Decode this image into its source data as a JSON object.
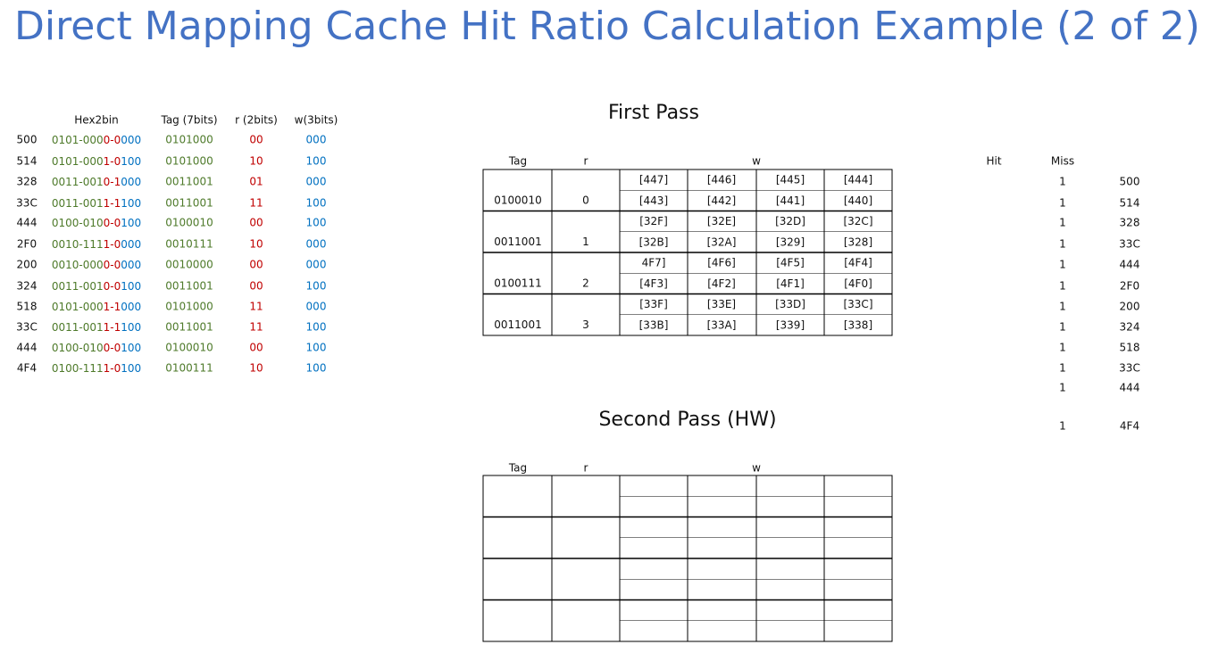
{
  "title": "Direct Mapping Cache Hit Ratio Calculation Example (2 of 2)",
  "address_table": {
    "headers": [
      "Hex2bin",
      "Tag (7bits)",
      "r (2bits)",
      "w(3bits)"
    ],
    "rows": [
      {
        "address": "500",
        "hex2bin": [
          "0101-000",
          "0-0",
          "000"
        ],
        "tag": "0101000",
        "r": "00",
        "w": "000"
      },
      {
        "address": "514",
        "hex2bin": [
          "0101-000",
          "1-0",
          "100"
        ],
        "tag": "0101000",
        "r": "10",
        "w": "100"
      },
      {
        "address": "328",
        "hex2bin": [
          "0011-001",
          "0-1",
          "000"
        ],
        "tag": "0011001",
        "r": "01",
        "w": "000"
      },
      {
        "address": "33C",
        "hex2bin": [
          "0011-001",
          "1-1",
          "100"
        ],
        "tag": "0011001",
        "r": "11",
        "w": "100"
      },
      {
        "address": "444",
        "hex2bin": [
          "0100-010",
          "0-0",
          "100"
        ],
        "tag": "0100010",
        "r": "00",
        "w": "100"
      },
      {
        "address": "2F0",
        "hex2bin": [
          "0010-111",
          "1-0",
          "000"
        ],
        "tag": "0010111",
        "r": "10",
        "w": "000"
      },
      {
        "address": "200",
        "hex2bin": [
          "0010-000",
          "0-0",
          "000"
        ],
        "tag": "0010000",
        "r": "00",
        "w": "000"
      },
      {
        "address": "324",
        "hex2bin": [
          "0011-001",
          "0-0",
          "100"
        ],
        "tag": "0011001",
        "r": "00",
        "w": "100"
      },
      {
        "address": "518",
        "hex2bin": [
          "0101-000",
          "1-1",
          "000"
        ],
        "tag": "0101000",
        "r": "11",
        "w": "000"
      },
      {
        "address": "33C",
        "hex2bin": [
          "0011-001",
          "1-1",
          "100"
        ],
        "tag": "0011001",
        "r": "11",
        "w": "100"
      },
      {
        "address": "444",
        "hex2bin": [
          "0100-010",
          "0-0",
          "100"
        ],
        "tag": "0100010",
        "r": "00",
        "w": "100"
      },
      {
        "address": "4F4",
        "hex2bin": [
          "0100-111",
          "1-0",
          "100"
        ],
        "tag": "0100111",
        "r": "10",
        "w": "100"
      }
    ]
  },
  "first_pass": {
    "title": "First Pass",
    "headers": [
      "Tag",
      "r",
      "w"
    ],
    "sets": [
      {
        "tag": "0100010",
        "r": "0",
        "w": [
          [
            "[447]",
            "[446]",
            "[445]",
            "[444]"
          ],
          [
            "[443]",
            "[442]",
            "[441]",
            "[440]"
          ]
        ]
      },
      {
        "tag": "0011001",
        "r": "1",
        "w": [
          [
            "[32F]",
            "[32E]",
            "[32D]",
            "[32C]"
          ],
          [
            "[32B]",
            "[32A]",
            "[329]",
            "[328]"
          ]
        ]
      },
      {
        "tag": "0100111",
        "r": "2",
        "w": [
          [
            "4F7]",
            "[4F6]",
            "[4F5]",
            "[4F4]"
          ],
          [
            "[4F3]",
            "[4F2]",
            "[4F1]",
            "[4F0]"
          ]
        ]
      },
      {
        "tag": "0011001",
        "r": "3",
        "w": [
          [
            "[33F]",
            "[33E]",
            "[33D]",
            "[33C]"
          ],
          [
            "[33B]",
            "[33A]",
            "[339]",
            "[338]"
          ]
        ]
      }
    ]
  },
  "tally": {
    "headers": [
      "Hit",
      "Miss"
    ],
    "rows": [
      {
        "miss": 1,
        "address": "500"
      },
      {
        "miss": 1,
        "address": "514"
      },
      {
        "miss": 1,
        "address": "328"
      },
      {
        "miss": 1,
        "address": "33C"
      },
      {
        "miss": 1,
        "address": "444"
      },
      {
        "miss": 1,
        "address": "2F0"
      },
      {
        "miss": 1,
        "address": "200"
      },
      {
        "miss": 1,
        "address": "324"
      },
      {
        "miss": 1,
        "address": "518"
      },
      {
        "miss": 1,
        "address": "33C"
      },
      {
        "miss": 1,
        "address": "444"
      },
      {
        "miss": 1,
        "address": "4F4"
      }
    ]
  },
  "second_pass": {
    "title": "Second Pass (HW)",
    "headers": [
      "Tag",
      "r",
      "w"
    ]
  }
}
